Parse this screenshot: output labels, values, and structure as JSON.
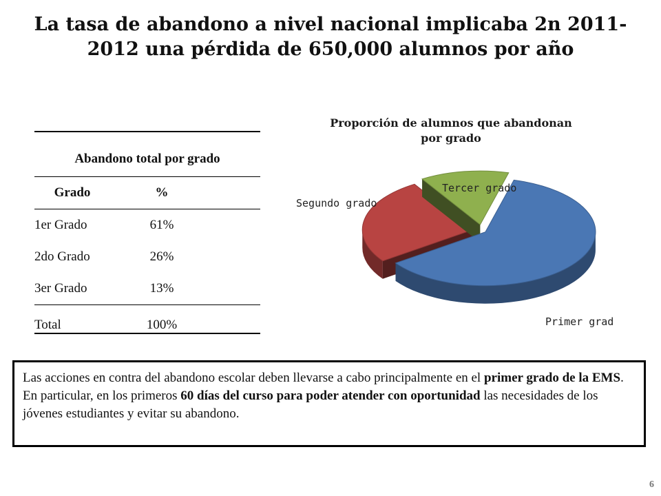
{
  "slide": {
    "title_line1": "La tasa de abandono a nivel nacional implicaba 2n 2011-",
    "title_line2": "2012 una pérdida de 650,000 alumnos por año",
    "page_number": "6"
  },
  "table": {
    "caption": "Abandono total por grado",
    "headers": [
      "Grado",
      "%"
    ],
    "rows": [
      [
        "1er Grado",
        "61%"
      ],
      [
        "2do Grado",
        "26%"
      ],
      [
        "3er Grado",
        "13%"
      ]
    ],
    "total": [
      "Total",
      "100%"
    ]
  },
  "note": {
    "p1": "Las acciones en contra del abandono escolar deben llevarse a cabo principalmente en el ",
    "b1": "primer grado de la EMS",
    "p2": ". En particular, en los primeros ",
    "b2": "60 días del curso para poder atender con oportunidad",
    "p3": " las necesidades de los jóvenes estudiantes y evitar su abandono."
  },
  "chart_data": {
    "type": "pie",
    "title": "Proporción de alumnos que abandonan por grado",
    "categories": [
      "Primer grado",
      "Segundo grado",
      "Tercer grado"
    ],
    "values": [
      61,
      26,
      13
    ],
    "colors": [
      "#4a77b4",
      "#b84442",
      "#8fb04e"
    ],
    "exploded": true,
    "three_d": true
  }
}
